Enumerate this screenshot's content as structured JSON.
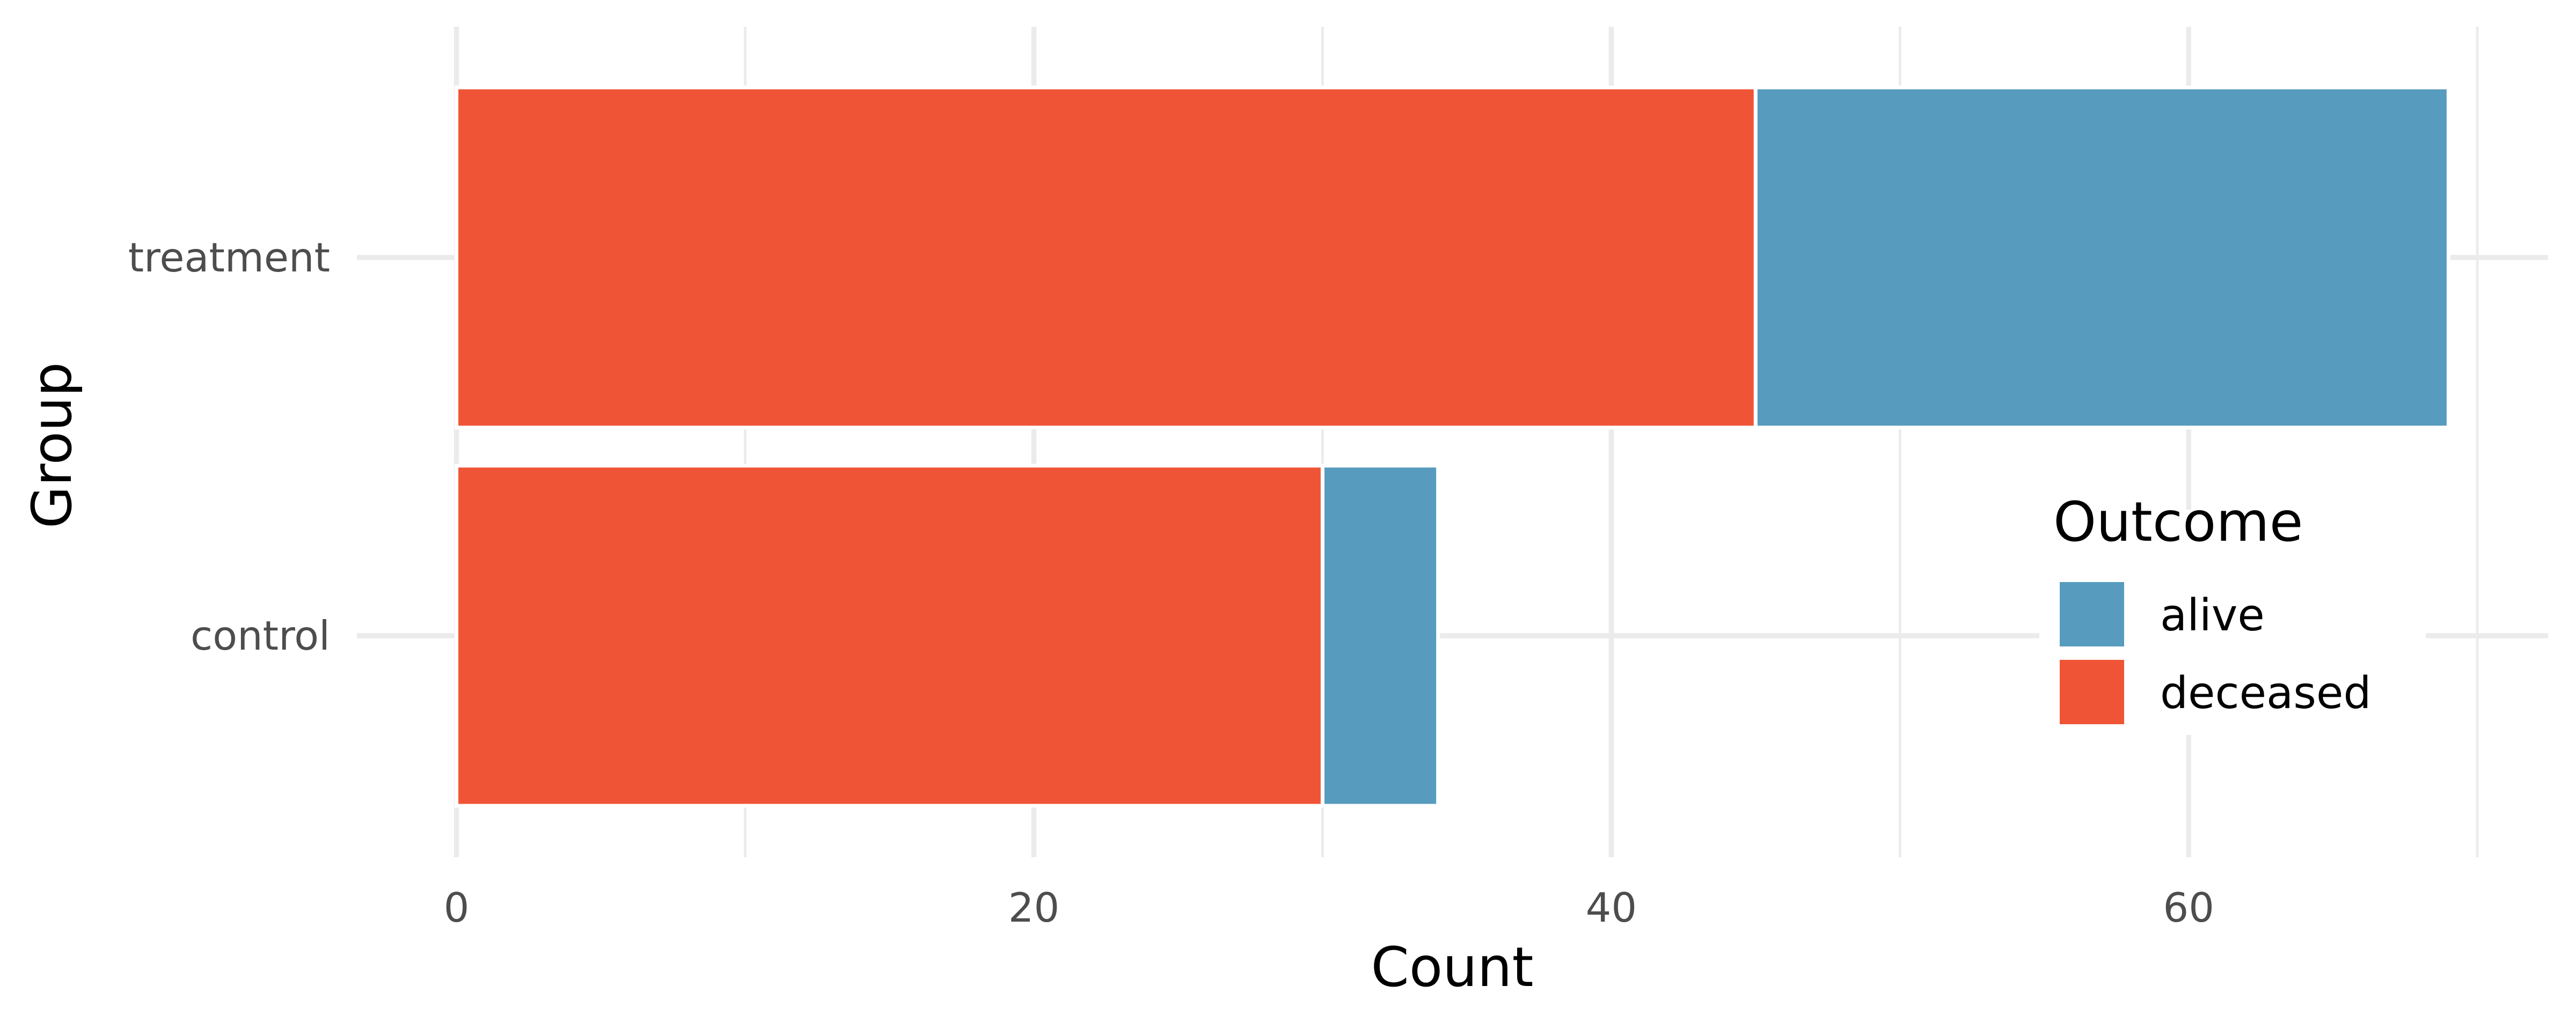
{
  "chart_data": {
    "type": "bar",
    "orientation": "horizontal",
    "stacked": true,
    "title": "",
    "xlabel": "Count",
    "ylabel": "Group",
    "categories": [
      "control",
      "treatment"
    ],
    "series": [
      {
        "name": "deceased",
        "values": [
          30,
          45
        ],
        "color": "#f05436"
      },
      {
        "name": "alive",
        "values": [
          4,
          24
        ],
        "color": "#579bbf"
      }
    ],
    "xlim": [
      -3.45,
      72.45
    ],
    "xticks": [
      0,
      20,
      40,
      60
    ],
    "xtick_labels": [
      "0",
      "20",
      "40",
      "60"
    ],
    "grid": true,
    "legend": {
      "title": "Outcome",
      "placement": "right-inside",
      "entries": [
        {
          "label": "alive",
          "color": "#579bbf"
        },
        {
          "label": "deceased",
          "color": "#f05436"
        }
      ]
    }
  }
}
